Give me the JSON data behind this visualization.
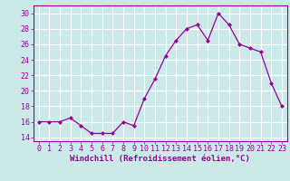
{
  "x": [
    0,
    1,
    2,
    3,
    4,
    5,
    6,
    7,
    8,
    9,
    10,
    11,
    12,
    13,
    14,
    15,
    16,
    17,
    18,
    19,
    20,
    21,
    22,
    23
  ],
  "y": [
    16.0,
    16.0,
    16.0,
    16.5,
    15.5,
    14.5,
    14.5,
    14.5,
    16.0,
    15.5,
    19.0,
    21.5,
    24.5,
    26.5,
    28.0,
    28.5,
    26.5,
    30.0,
    28.5,
    26.0,
    25.5,
    25.0,
    21.0,
    18.0
  ],
  "line_color": "#990099",
  "marker": "D",
  "marker_size": 2.0,
  "bg_color": "#cce9e9",
  "grid_color": "#ffffff",
  "xlabel": "Windchill (Refroidissement éolien,°C)",
  "xlabel_color": "#990099",
  "xlabel_fontsize": 6.5,
  "tick_color": "#990099",
  "tick_fontsize": 6.0,
  "xlim": [
    -0.5,
    23.5
  ],
  "ylim": [
    13.5,
    31.0
  ],
  "yticks": [
    14,
    16,
    18,
    20,
    22,
    24,
    26,
    28,
    30
  ],
  "xticks": [
    0,
    1,
    2,
    3,
    4,
    5,
    6,
    7,
    8,
    9,
    10,
    11,
    12,
    13,
    14,
    15,
    16,
    17,
    18,
    19,
    20,
    21,
    22,
    23
  ],
  "spine_color": "#990099",
  "linewidth": 0.9
}
